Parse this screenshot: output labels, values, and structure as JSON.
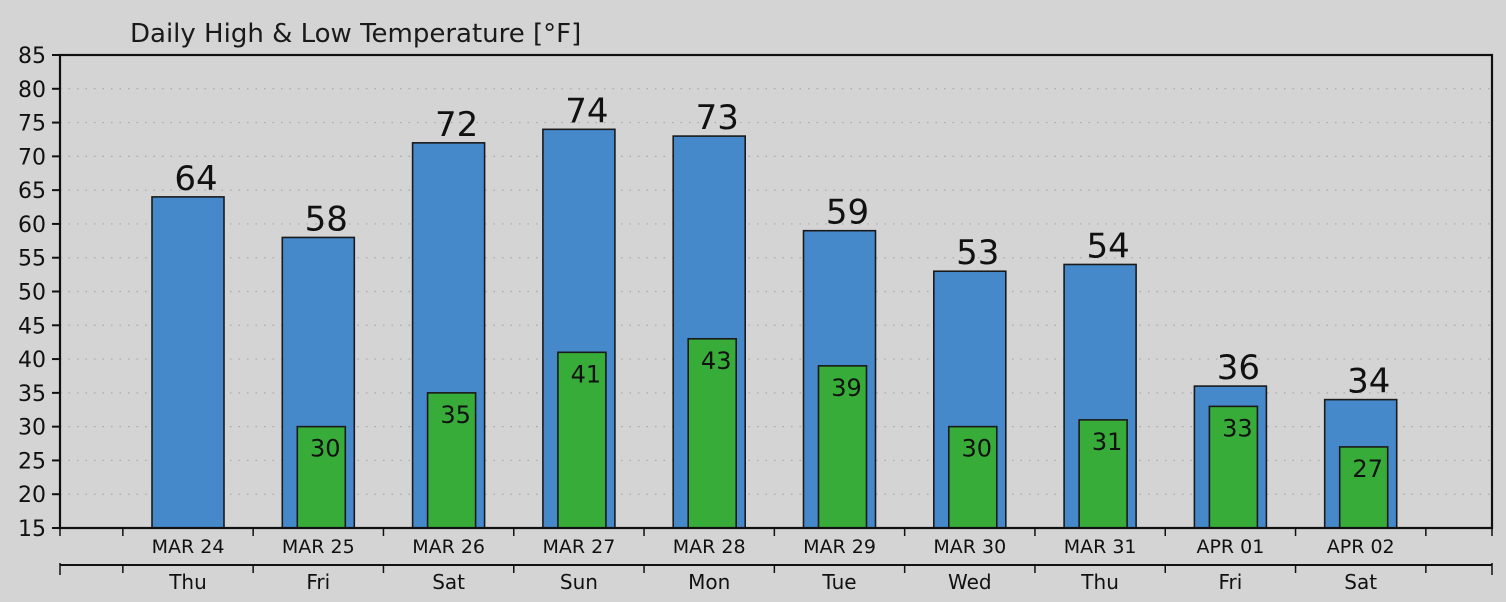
{
  "chart_data": {
    "type": "bar",
    "title": "Daily High & Low Temperature [°F]",
    "xlabel": "",
    "ylabel": "",
    "ylim": [
      15,
      85
    ],
    "yticks": [
      15,
      20,
      25,
      30,
      35,
      40,
      45,
      50,
      55,
      60,
      65,
      70,
      75,
      80,
      85
    ],
    "grid": true,
    "categories": [
      "MAR 24",
      "MAR 25",
      "MAR 26",
      "MAR 27",
      "MAR 28",
      "MAR 29",
      "MAR 30",
      "MAR 31",
      "APR 01",
      "APR 02"
    ],
    "days": [
      "Thu",
      "Fri",
      "Sat",
      "Sun",
      "Mon",
      "Tue",
      "Wed",
      "Thu",
      "Fri",
      "Sat"
    ],
    "series": [
      {
        "values": [
          64,
          58,
          72,
          74,
          73,
          59,
          53,
          54,
          36,
          34
        ],
        "color": "#4589cb"
      },
      {
        "values": [
          null,
          30,
          35,
          41,
          43,
          39,
          30,
          31,
          33,
          27
        ],
        "color": "#38ac38"
      }
    ],
    "bar_value_labels": {
      "high": [
        "64",
        "58",
        "72",
        "74",
        "73",
        "59",
        "53",
        "54",
        "36",
        "34"
      ],
      "low": [
        "",
        "30",
        "35",
        "41",
        "43",
        "39",
        "30",
        "31",
        "33",
        "27"
      ]
    }
  },
  "colors": {
    "background": "#d4d4d4",
    "grid": "#a8a8a8",
    "axis": "#111111",
    "high_bar": "#4589cb",
    "low_bar": "#38ac38"
  }
}
